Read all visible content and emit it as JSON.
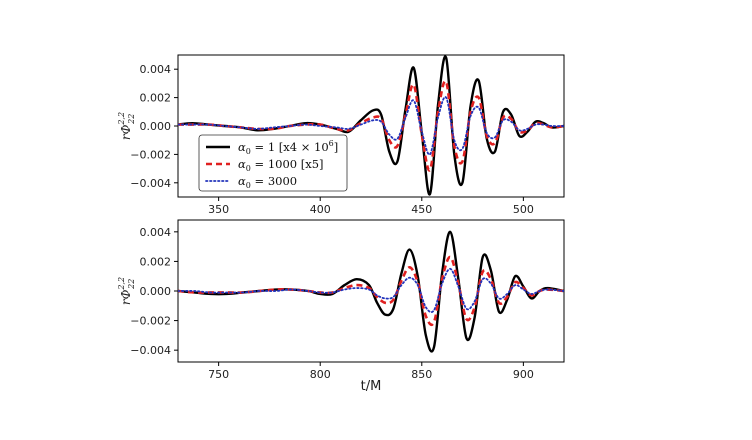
{
  "chart_data": [
    {
      "type": "line",
      "panel": "top",
      "xlim": [
        330,
        520
      ],
      "ylim": [
        -0.005,
        0.005
      ],
      "xticks": [
        350,
        400,
        450,
        500
      ],
      "yticks": [
        -0.004,
        -0.002,
        0.0,
        0.002,
        0.004
      ],
      "ytick_labels": [
        "−0.004",
        "−0.002",
        "0.000",
        "0.002",
        "0.004"
      ],
      "ylabel": "rΦ",
      "ylabel_sup": "2,2",
      "ylabel_sub": "22",
      "xlabel": "",
      "legend_position": "lower-left",
      "grid": false,
      "series": [
        {
          "name": "α₀ = 1 [x4 × 10⁶]",
          "color": "#000000",
          "style": "solid",
          "x": [
            330,
            337,
            345,
            353,
            361,
            369,
            377,
            385,
            393,
            400,
            408,
            414,
            420,
            426,
            430,
            434,
            438,
            442,
            446,
            450,
            454,
            458,
            462,
            466,
            470,
            474,
            478,
            482,
            486,
            490,
            494,
            498,
            502,
            506,
            510,
            514,
            520
          ],
          "y": [
            0.0001,
            0.0002,
            0.0001,
            0.0,
            -0.0001,
            -0.0003,
            -0.0002,
            0.0,
            0.0002,
            0.0001,
            -0.0002,
            -0.0004,
            0.0004,
            0.0011,
            0.0008,
            -0.0018,
            -0.0025,
            0.0012,
            0.0041,
            -0.0005,
            -0.0048,
            0.0015,
            0.0048,
            -0.002,
            -0.004,
            0.0014,
            0.0032,
            -0.0009,
            -0.0018,
            0.001,
            0.0008,
            -0.0007,
            -0.0004,
            0.0003,
            0.0002,
            -0.0001,
            0.0
          ]
        },
        {
          "name": "α₀ = 1000 [x5]",
          "color": "#e02020",
          "style": "dashed",
          "x": [
            330,
            337,
            345,
            353,
            361,
            369,
            377,
            385,
            393,
            400,
            408,
            414,
            420,
            426,
            430,
            434,
            438,
            442,
            446,
            450,
            454,
            458,
            462,
            466,
            470,
            474,
            478,
            482,
            486,
            490,
            494,
            498,
            502,
            506,
            510,
            514,
            520
          ],
          "y": [
            0.0001,
            0.0001,
            0.0001,
            0.0,
            -0.0001,
            -0.0002,
            -0.0002,
            0.0,
            0.0001,
            0.0001,
            -0.0002,
            -0.0003,
            0.0002,
            0.0006,
            0.0005,
            -0.001,
            -0.0014,
            0.0008,
            0.0029,
            -0.0006,
            -0.0031,
            0.001,
            0.0031,
            -0.0014,
            -0.0025,
            0.001,
            0.002,
            -0.0007,
            -0.0012,
            0.0006,
            0.0005,
            -0.0004,
            -0.0003,
            0.0002,
            0.0001,
            -0.0001,
            0.0
          ]
        },
        {
          "name": "α₀ = 3000",
          "color": "#2233bb",
          "style": "dotted",
          "x": [
            330,
            337,
            345,
            353,
            361,
            369,
            377,
            385,
            393,
            400,
            408,
            414,
            420,
            426,
            430,
            434,
            438,
            442,
            446,
            450,
            454,
            458,
            462,
            466,
            470,
            474,
            478,
            482,
            486,
            490,
            494,
            498,
            502,
            506,
            510,
            514,
            520
          ],
          "y": [
            0.0001,
            0.0001,
            0.0001,
            0.0,
            -0.0001,
            -0.0002,
            -0.0001,
            0.0,
            0.0001,
            0.0,
            -0.0001,
            -0.0002,
            0.0001,
            0.0004,
            0.0003,
            -0.0006,
            -0.0009,
            0.0006,
            0.0018,
            -0.0004,
            -0.002,
            0.0006,
            0.002,
            -0.001,
            -0.0016,
            0.0007,
            0.0013,
            -0.0005,
            -0.0008,
            0.0004,
            0.0003,
            -0.0003,
            -0.0002,
            0.0001,
            0.0001,
            0.0,
            0.0
          ]
        }
      ]
    },
    {
      "type": "line",
      "panel": "bottom",
      "xlim": [
        730,
        920
      ],
      "ylim": [
        -0.0048,
        0.0048
      ],
      "xticks": [
        750,
        800,
        850,
        900
      ],
      "yticks": [
        -0.004,
        -0.002,
        0.0,
        0.002,
        0.004
      ],
      "ytick_labels": [
        "−0.004",
        "−0.002",
        "0.000",
        "0.002",
        "0.004"
      ],
      "ylabel": "rΦ",
      "ylabel_sup": "2,2",
      "ylabel_sub": "22",
      "xlabel": "t/M",
      "grid": false,
      "series": [
        {
          "name": "α₀ = 1 [x4 × 10⁶]",
          "color": "#000000",
          "style": "solid",
          "x": [
            730,
            738,
            746,
            754,
            762,
            770,
            778,
            786,
            794,
            800,
            806,
            812,
            818,
            824,
            828,
            832,
            836,
            840,
            844,
            848,
            852,
            856,
            860,
            864,
            868,
            872,
            876,
            880,
            884,
            888,
            892,
            896,
            900,
            904,
            908,
            912,
            920
          ],
          "y": [
            0.0,
            -0.0001,
            -0.0002,
            -0.0002,
            -0.0001,
            0.0,
            0.0001,
            0.0001,
            0.0,
            -0.0002,
            -0.0002,
            0.0004,
            0.0008,
            0.0004,
            -0.0008,
            -0.0016,
            -0.0012,
            0.0012,
            0.0028,
            0.001,
            -0.003,
            -0.0038,
            0.0012,
            0.004,
            0.0008,
            -0.0032,
            -0.0018,
            0.0023,
            0.0014,
            -0.0014,
            -0.0006,
            0.001,
            0.0003,
            -0.0005,
            0.0,
            0.0002,
            0.0
          ]
        },
        {
          "name": "α₀ = 1000 [x5]",
          "color": "#e02020",
          "style": "dashed",
          "x": [
            730,
            738,
            746,
            754,
            762,
            770,
            778,
            786,
            794,
            800,
            806,
            812,
            818,
            824,
            828,
            832,
            836,
            840,
            844,
            848,
            852,
            856,
            860,
            864,
            868,
            872,
            876,
            880,
            884,
            888,
            892,
            896,
            900,
            904,
            908,
            912,
            920
          ],
          "y": [
            0.0,
            -0.0001,
            -0.0001,
            -0.0001,
            -0.0001,
            0.0,
            0.0001,
            0.0001,
            0.0,
            -0.0001,
            -0.0001,
            0.0002,
            0.0004,
            0.0002,
            -0.0004,
            -0.0008,
            -0.0006,
            0.0007,
            0.0016,
            0.0006,
            -0.0017,
            -0.0021,
            0.0008,
            0.0023,
            0.0005,
            -0.0019,
            -0.0011,
            0.0013,
            0.0008,
            -0.0008,
            -0.0004,
            0.0006,
            0.0002,
            -0.0003,
            0.0,
            0.0001,
            0.0
          ]
        },
        {
          "name": "α₀ = 3000",
          "color": "#2233bb",
          "style": "dotted",
          "x": [
            730,
            738,
            746,
            754,
            762,
            770,
            778,
            786,
            794,
            800,
            806,
            812,
            818,
            824,
            828,
            832,
            836,
            840,
            844,
            848,
            852,
            856,
            860,
            864,
            868,
            872,
            876,
            880,
            884,
            888,
            892,
            896,
            900,
            904,
            908,
            912,
            920
          ],
          "y": [
            0.0,
            0.0,
            -0.0001,
            -0.0001,
            -0.0001,
            0.0,
            0.0,
            0.0001,
            0.0,
            -0.0001,
            -0.0001,
            0.0001,
            0.0002,
            0.0001,
            -0.0003,
            -0.0005,
            -0.0004,
            0.0004,
            0.0009,
            0.0004,
            -0.0011,
            -0.0013,
            0.0005,
            0.0015,
            0.0003,
            -0.0012,
            -0.0007,
            0.0008,
            0.0005,
            -0.0005,
            -0.0002,
            0.0004,
            0.0001,
            -0.0002,
            0.0,
            0.0001,
            0.0
          ]
        }
      ]
    }
  ],
  "legend": {
    "entries": [
      {
        "label_main": "α",
        "label_sub": "0",
        "label_rest": " = 1 [x4 × 10",
        "label_sup": "6",
        "label_end": "]",
        "color": "#000000",
        "style": "solid"
      },
      {
        "label_main": "α",
        "label_sub": "0",
        "label_rest": " = 1000 [x5]",
        "label_sup": "",
        "label_end": "",
        "color": "#e02020",
        "style": "dashed"
      },
      {
        "label_main": "α",
        "label_sub": "0",
        "label_rest": " = 3000",
        "label_sup": "",
        "label_end": "",
        "color": "#2233bb",
        "style": "dotted"
      }
    ]
  }
}
